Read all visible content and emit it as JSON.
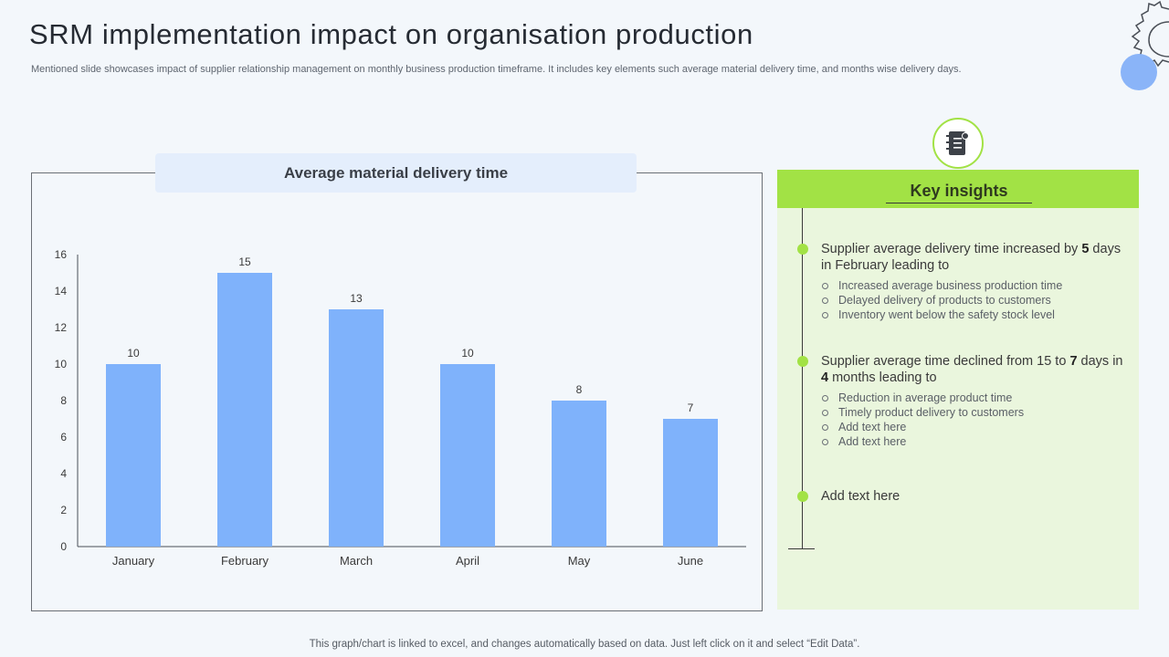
{
  "header": {
    "title": "SRM implementation impact on organisation production",
    "subtitle": "Mentioned slide showcases impact of supplier relationship management on monthly business production timeframe. It includes key elements such average material delivery time, and months wise delivery days."
  },
  "colors": {
    "bar": "#7fb2fb",
    "accent_green": "#a2e245",
    "panel_bg": "#eaf6dd",
    "gear_circle": "#8ab4f8"
  },
  "chart_data": {
    "type": "bar",
    "title": "Average material delivery time",
    "categories": [
      "January",
      "February",
      "March",
      "April",
      "May",
      "June"
    ],
    "values": [
      10,
      15,
      13,
      10,
      8,
      7
    ],
    "ylim": [
      0,
      16
    ],
    "yticks": [
      0,
      2,
      4,
      6,
      8,
      10,
      12,
      14,
      16
    ],
    "xlabel": "",
    "ylabel": "",
    "data_labels": true,
    "grid": false
  },
  "insights": {
    "header": "Key insights",
    "icon": "document-list-icon",
    "items": [
      {
        "text_parts": [
          "Supplier average delivery time increased by ",
          "5",
          " days in February leading to"
        ],
        "sub": [
          "Increased average  business production time",
          "Delayed delivery  of products to customers",
          "Inventory  went below the safety stock level"
        ]
      },
      {
        "text_parts": [
          "Supplier average time declined from 15 to ",
          "7",
          " days in ",
          "4",
          " months leading to"
        ],
        "sub": [
          "Reduction in average  product time",
          "Timely product delivery to customers",
          "Add text here",
          "Add text here"
        ]
      },
      {
        "text": "Add text here"
      }
    ]
  },
  "footer": "This graph/chart is linked to excel,  and changes automatically based on data. Just left click on it and select “Edit Data”."
}
